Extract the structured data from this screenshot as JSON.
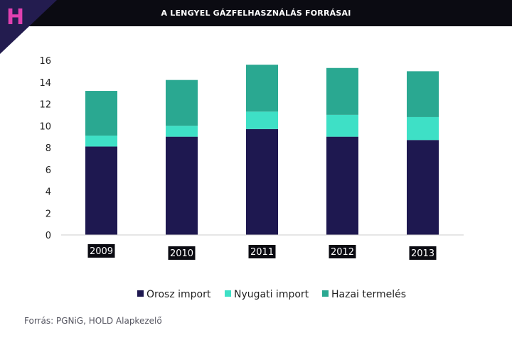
{
  "header": {
    "title": "A LENGYEL GÁZFELHASZNÁLÁS FORRÁSAI",
    "logo_letter": "H"
  },
  "source": "Forrás: PGNiG, HOLD Alapkezelő",
  "colors": {
    "header_bg": "#0b0b12",
    "logo_triangle": "#231c4f",
    "logo_letter": "#e040b0",
    "orosz": "#1e1850",
    "nyugati": "#3ee0c6",
    "hazai": "#2aa891"
  },
  "chart_data": {
    "type": "bar",
    "stacked": true,
    "title": "A LENGYEL GÁZFELHASZNÁLÁS FORRÁSAI",
    "categories": [
      "2009",
      "2010",
      "2011",
      "2012",
      "2013"
    ],
    "series": [
      {
        "name": "Orosz import",
        "values": [
          8.1,
          9.0,
          9.7,
          9.0,
          8.7
        ]
      },
      {
        "name": "Nyugati import",
        "values": [
          1.0,
          1.0,
          1.6,
          2.0,
          2.1
        ]
      },
      {
        "name": "Hazai termelés",
        "values": [
          4.1,
          4.2,
          4.3,
          4.3,
          4.2
        ]
      }
    ],
    "yticks": [
      "0",
      "2",
      "4",
      "6",
      "8",
      "10",
      "12",
      "14",
      "16"
    ],
    "ylim": [
      0,
      16
    ],
    "legend": "bottom-center",
    "grid": false
  }
}
